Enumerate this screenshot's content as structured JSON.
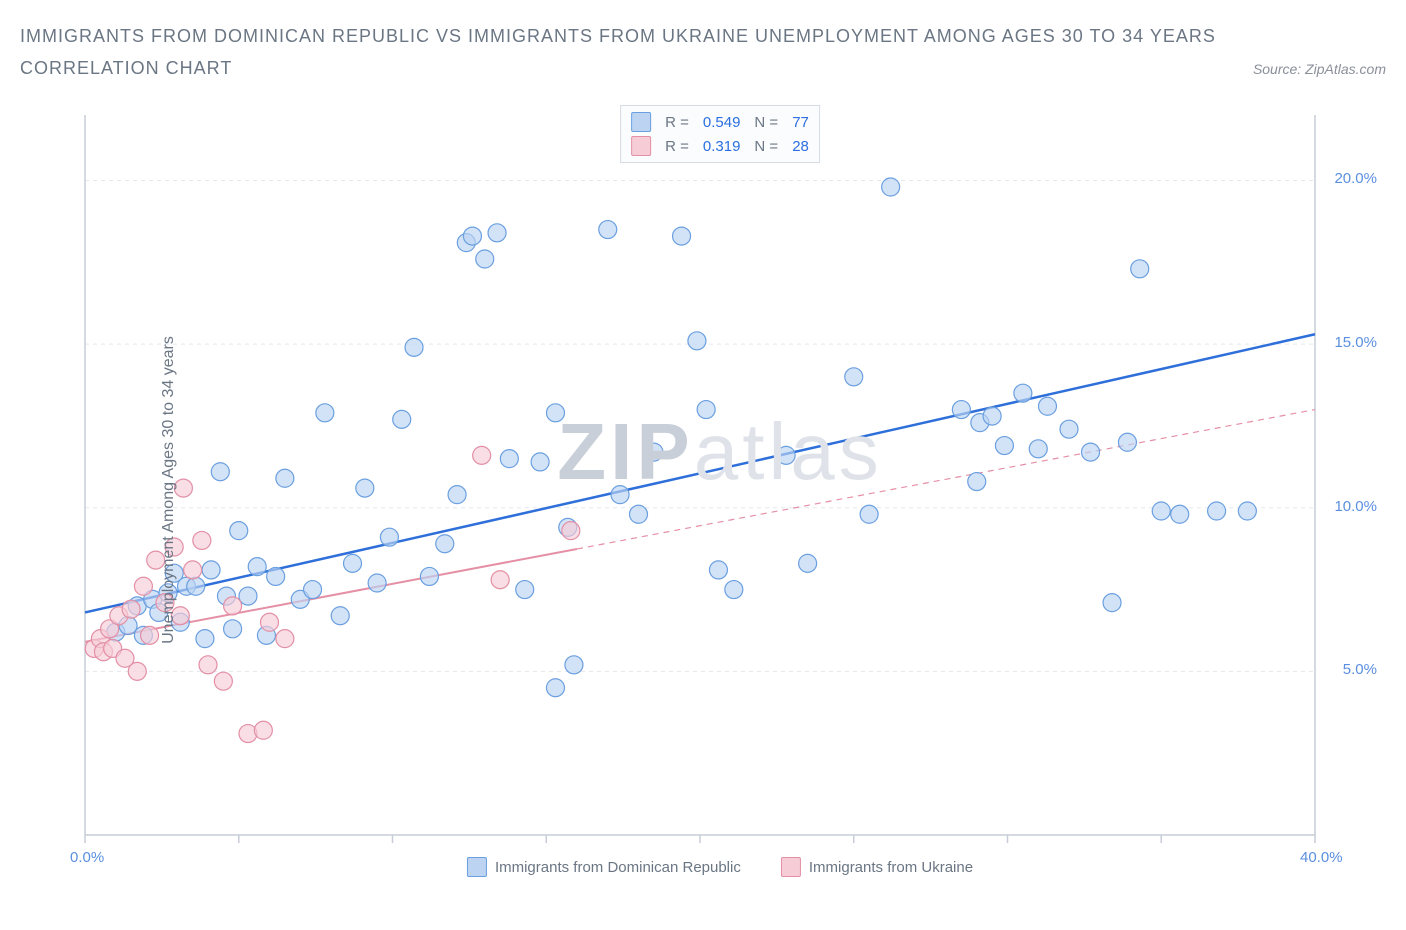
{
  "header": {
    "title_line1": "IMMIGRANTS FROM DOMINICAN REPUBLIC VS IMMIGRANTS FROM UKRAINE UNEMPLOYMENT AMONG AGES 30 TO 34 YEARS",
    "title_line2": "CORRELATION CHART",
    "source_prefix": "Source: ",
    "source_name": "ZipAtlas.com"
  },
  "chart": {
    "type": "scatter",
    "ylabel": "Unemployment Among Ages 30 to 34 years",
    "xlim": [
      0,
      40
    ],
    "ylim": [
      0,
      22
    ],
    "xticks": [
      0,
      5,
      10,
      15,
      20,
      25,
      30,
      35,
      40
    ],
    "yticks": [
      5,
      10,
      15,
      20
    ],
    "xtick_labels": {
      "0": "0.0%",
      "40": "40.0%"
    },
    "ytick_labels": {
      "5": "5.0%",
      "10": "10.0%",
      "15": "15.0%",
      "20": "20.0%"
    },
    "grid_color": "#e4e8ee",
    "axis_color": "#c7cdd6",
    "background_color": "#ffffff",
    "marker_radius": 9,
    "marker_stroke_width": 1.2,
    "series": [
      {
        "key": "dr",
        "name": "Immigrants from Dominican Republic",
        "fill": "#bcd4f2",
        "stroke": "#6a9fe0",
        "r_value": "0.549",
        "n_value": "77",
        "trend": {
          "x1": 0,
          "y1": 6.8,
          "x2": 40,
          "y2": 15.3,
          "solid_to_x": 40
        },
        "trend_color": "#2e6fd9",
        "trend_width": 2.5,
        "points": [
          [
            1,
            6.2
          ],
          [
            1.4,
            6.4
          ],
          [
            1.7,
            7.0
          ],
          [
            1.9,
            6.1
          ],
          [
            2.2,
            7.2
          ],
          [
            2.4,
            6.8
          ],
          [
            2.7,
            7.4
          ],
          [
            2.9,
            8.0
          ],
          [
            3.1,
            6.5
          ],
          [
            3.3,
            7.6
          ],
          [
            3.6,
            7.6
          ],
          [
            3.9,
            6.0
          ],
          [
            4.1,
            8.1
          ],
          [
            4.4,
            11.1
          ],
          [
            4.6,
            7.3
          ],
          [
            4.8,
            6.3
          ],
          [
            5.0,
            9.3
          ],
          [
            5.3,
            7.3
          ],
          [
            5.6,
            8.2
          ],
          [
            5.9,
            6.1
          ],
          [
            6.2,
            7.9
          ],
          [
            6.5,
            10.9
          ],
          [
            7.0,
            7.2
          ],
          [
            7.4,
            7.5
          ],
          [
            7.8,
            12.9
          ],
          [
            8.3,
            6.7
          ],
          [
            8.7,
            8.3
          ],
          [
            9.1,
            10.6
          ],
          [
            9.5,
            7.7
          ],
          [
            9.9,
            9.1
          ],
          [
            10.3,
            12.7
          ],
          [
            10.7,
            14.9
          ],
          [
            11.2,
            7.9
          ],
          [
            11.7,
            8.9
          ],
          [
            12.1,
            10.4
          ],
          [
            12.4,
            18.1
          ],
          [
            12.6,
            18.3
          ],
          [
            13.0,
            17.6
          ],
          [
            13.4,
            18.4
          ],
          [
            13.8,
            11.5
          ],
          [
            14.3,
            7.5
          ],
          [
            14.8,
            11.4
          ],
          [
            15.3,
            12.9
          ],
          [
            15.7,
            9.4
          ],
          [
            15.3,
            4.5
          ],
          [
            15.9,
            5.2
          ],
          [
            17.0,
            18.5
          ],
          [
            17.4,
            10.4
          ],
          [
            18.0,
            9.8
          ],
          [
            18.5,
            11.7
          ],
          [
            19.4,
            18.3
          ],
          [
            19.9,
            15.1
          ],
          [
            20.6,
            8.1
          ],
          [
            21.1,
            7.5
          ],
          [
            22.8,
            11.6
          ],
          [
            23.5,
            8.3
          ],
          [
            25.0,
            14.0
          ],
          [
            25.5,
            9.8
          ],
          [
            26.2,
            19.8
          ],
          [
            28.5,
            13.0
          ],
          [
            29.1,
            12.6
          ],
          [
            29.5,
            12.8
          ],
          [
            29.9,
            11.9
          ],
          [
            30.5,
            13.5
          ],
          [
            31.0,
            11.8
          ],
          [
            31.3,
            13.1
          ],
          [
            32.0,
            12.4
          ],
          [
            32.7,
            11.7
          ],
          [
            33.4,
            7.1
          ],
          [
            33.9,
            12.0
          ],
          [
            34.3,
            17.3
          ],
          [
            35.0,
            9.9
          ],
          [
            35.6,
            9.8
          ],
          [
            36.8,
            9.9
          ],
          [
            37.8,
            9.9
          ],
          [
            29.0,
            10.8
          ],
          [
            20.2,
            13.0
          ]
        ]
      },
      {
        "key": "ua",
        "name": "Immigrants from Ukraine",
        "fill": "#f6cdd7",
        "stroke": "#e38fa5",
        "r_value": "0.319",
        "n_value": "28",
        "trend": {
          "x1": 0,
          "y1": 5.9,
          "x2": 40,
          "y2": 13.0,
          "solid_to_x": 16
        },
        "trend_color": "#e58fa5",
        "trend_width": 2,
        "points": [
          [
            0.3,
            5.7
          ],
          [
            0.5,
            6.0
          ],
          [
            0.6,
            5.6
          ],
          [
            0.8,
            6.3
          ],
          [
            0.9,
            5.7
          ],
          [
            1.1,
            6.7
          ],
          [
            1.3,
            5.4
          ],
          [
            1.5,
            6.9
          ],
          [
            1.7,
            5.0
          ],
          [
            1.9,
            7.6
          ],
          [
            2.1,
            6.1
          ],
          [
            2.3,
            8.4
          ],
          [
            2.6,
            7.1
          ],
          [
            2.9,
            8.8
          ],
          [
            3.1,
            6.7
          ],
          [
            3.2,
            10.6
          ],
          [
            3.5,
            8.1
          ],
          [
            3.8,
            9.0
          ],
          [
            4.0,
            5.2
          ],
          [
            4.5,
            4.7
          ],
          [
            4.8,
            7.0
          ],
          [
            5.3,
            3.1
          ],
          [
            5.8,
            3.2
          ],
          [
            6.0,
            6.5
          ],
          [
            6.5,
            6.0
          ],
          [
            12.9,
            11.6
          ],
          [
            13.5,
            7.8
          ],
          [
            15.8,
            9.3
          ]
        ]
      }
    ],
    "legend_labels": {
      "R": "R =",
      "N": "N ="
    },
    "watermark": {
      "z": "ZIP",
      "rest": "atlas"
    }
  }
}
